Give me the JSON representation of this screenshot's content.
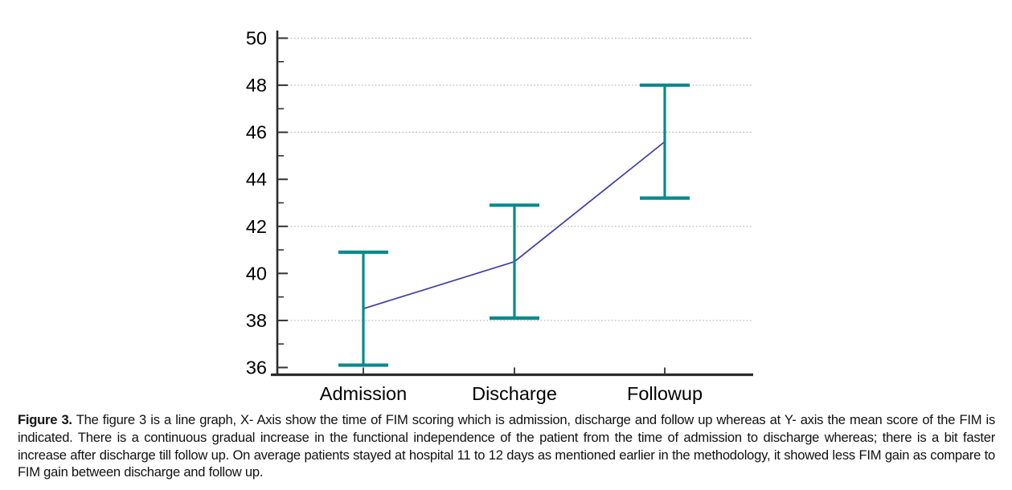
{
  "figure": {
    "caption_label": "Figure 3.",
    "caption_text": " The figure 3 is a line graph, X- Axis show the time of FIM scoring which is admission, discharge and follow up whereas at Y- axis the mean score of the FIM is indicated. There is a continuous gradual increase in the functional independence of the patient from the time of admission to discharge whereas; there is a bit faster increase after discharge till follow up. On average patients stayed at hospital 11 to 12 days as mentioned earlier in the methodology, it showed less FIM gain as compare to FIM gain between discharge and follow up."
  },
  "colors": {
    "background": "#ffffff",
    "error_bar": "#088a8c",
    "mean_line": "#3d3da0",
    "axis": "#2b2b2b",
    "tick": "#333333",
    "gridline": "#b2b2b2",
    "text": "#000000"
  },
  "chart_data": {
    "type": "line",
    "title": "",
    "xlabel": "",
    "ylabel": "",
    "categories": [
      "Admission",
      "Discharge",
      "Followup"
    ],
    "series": [
      {
        "name": "Mean FIM score",
        "values": [
          38.5,
          40.5,
          45.6
        ]
      }
    ],
    "error_bars": {
      "low": [
        36.1,
        38.1,
        43.2
      ],
      "high": [
        40.9,
        42.9,
        48.0
      ]
    },
    "ylim": [
      36,
      50
    ],
    "yticks": [
      36,
      38,
      40,
      42,
      44,
      46,
      48,
      50
    ],
    "minor_yticks": [
      37,
      39,
      41,
      43,
      45,
      47,
      49
    ],
    "gridline_values": [
      38,
      42,
      46,
      48,
      50
    ],
    "grid": "horizontal dotted",
    "legend": "none"
  }
}
